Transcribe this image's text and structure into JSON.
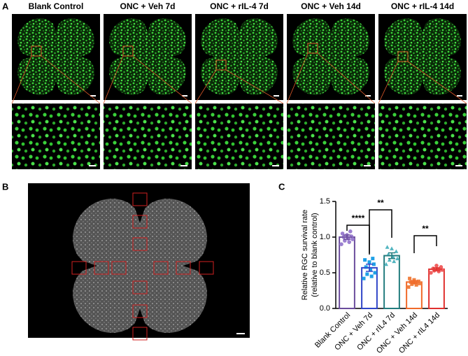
{
  "panels": {
    "a": "A",
    "b": "B",
    "c": "C"
  },
  "columns": [
    "Blank Control",
    "ONC + Veh 7d",
    "ONC + rIL-4 7d",
    "ONC + Veh 14d",
    "ONC + rIL-4 14d"
  ],
  "chart_data": {
    "type": "bar",
    "ylabel": [
      "Relative RGC survival rate",
      "(relative to blank control)"
    ],
    "categories": [
      "Blank Control",
      "ONC + Veh 7d",
      "ONC + rIL4 7d",
      "ONC + Veh 14d",
      "ONC + rIL4 14d"
    ],
    "values": [
      1.0,
      0.57,
      0.74,
      0.37,
      0.55
    ],
    "errors": [
      0.03,
      0.05,
      0.04,
      0.02,
      0.02
    ],
    "colors": [
      "#6a4c9c",
      "#2f45c8",
      "#237c7e",
      "#f06a2a",
      "#e0302e"
    ],
    "point_colors": [
      "#9b7fd0",
      "#1ea0e6",
      "#52b5c0",
      "#f08040",
      "#f06060"
    ],
    "points": [
      [
        0.9,
        0.93,
        0.95,
        0.97,
        0.98,
        1.0,
        1.01,
        1.03,
        1.05,
        1.08
      ],
      [
        0.42,
        0.45,
        0.48,
        0.5,
        0.55,
        0.58,
        0.62,
        0.65,
        0.68,
        0.7
      ],
      [
        0.62,
        0.66,
        0.68,
        0.7,
        0.73,
        0.76,
        0.8,
        0.84,
        0.86
      ],
      [
        0.3,
        0.33,
        0.34,
        0.35,
        0.36,
        0.37,
        0.38,
        0.4,
        0.42
      ],
      [
        0.5,
        0.52,
        0.53,
        0.54,
        0.55,
        0.56,
        0.58,
        0.6
      ]
    ],
    "annotations": [
      "****",
      "**",
      "**"
    ],
    "ylim": [
      0,
      1.5
    ],
    "yticks": [
      {
        "value": 0,
        "label": "0.0"
      },
      {
        "value": 0.5,
        "label": "0.5"
      },
      {
        "value": 1,
        "label": "1.0"
      },
      {
        "value": 1.5,
        "label": "1.5"
      }
    ]
  }
}
